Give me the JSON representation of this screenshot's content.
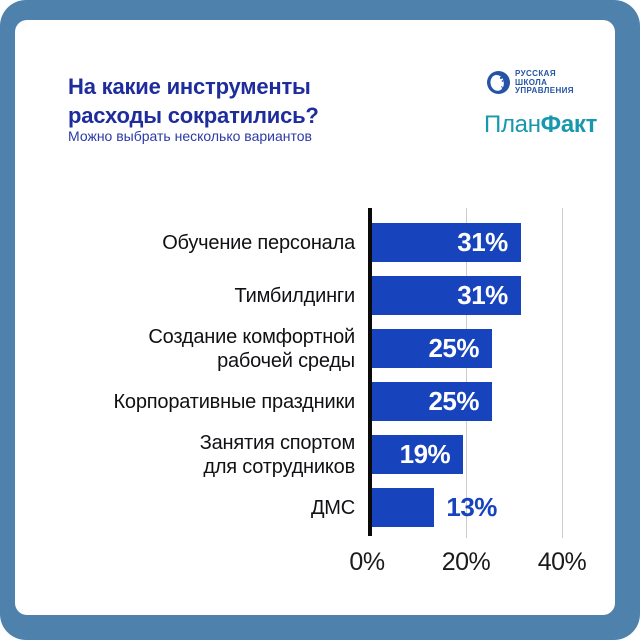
{
  "frame": {
    "border_color": "#4F81AD",
    "card_color": "#FFFFFF"
  },
  "header": {
    "title": "На какие инструменты\nрасходы сократились?",
    "subtitle": "Можно выбрать несколько вариантов",
    "title_color": "#1F2C9C",
    "subtitle_color": "#2B3AA8"
  },
  "logos": {
    "rshu": {
      "line1": "РУССКАЯ",
      "line2": "ШКОЛА",
      "line3": "УПРАВЛЕНИЯ",
      "color": "#2553A5"
    },
    "planfakt": {
      "part1": "План",
      "part2": "Факт",
      "color": "#1898AE"
    }
  },
  "chart_data": {
    "type": "bar",
    "orientation": "horizontal",
    "title": "На какие инструменты расходы сократились?",
    "categories": [
      "Обучение персонала",
      "Тимбилдинги",
      "Создание комфортной\nрабочей среды",
      "Корпоративные праздники",
      "Занятия спортом\nдля сотрудников",
      "ДМС"
    ],
    "values": [
      31,
      31,
      25,
      25,
      19,
      13
    ],
    "value_labels": [
      "31%",
      "31%",
      "25%",
      "25%",
      "19%",
      "13%"
    ],
    "xticks": [
      "0%",
      "20%",
      "40%"
    ],
    "xlim": [
      0,
      44
    ],
    "bar_color": "#1743BD",
    "grid": true,
    "legend": false
  }
}
